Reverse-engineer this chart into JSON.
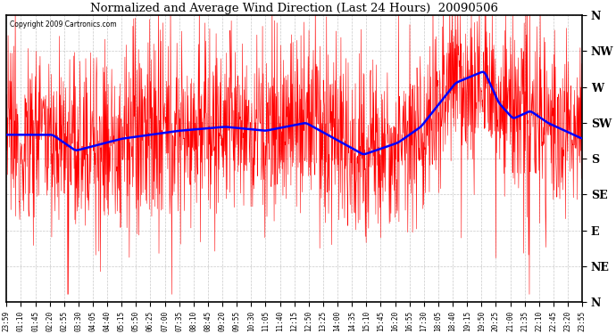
{
  "title": "Normalized and Average Wind Direction (Last 24 Hours)  20090506",
  "copyright_text": "Copyright 2009 Cartronics.com",
  "background_color": "#ffffff",
  "plot_bg_color": "#ffffff",
  "grid_color": "#bbbbbb",
  "red_line_color": "#ff0000",
  "blue_line_color": "#0000ff",
  "y_labels": [
    "N",
    "NW",
    "W",
    "SW",
    "S",
    "SE",
    "E",
    "NE",
    "N"
  ],
  "y_ticks": [
    360,
    315,
    270,
    225,
    180,
    135,
    90,
    45,
    0
  ],
  "ylim": [
    0,
    360
  ],
  "x_labels": [
    "23:59",
    "01:10",
    "01:45",
    "02:20",
    "02:55",
    "03:30",
    "04:05",
    "04:40",
    "05:15",
    "05:50",
    "06:25",
    "07:00",
    "07:35",
    "08:10",
    "08:45",
    "09:20",
    "09:55",
    "10:30",
    "11:05",
    "11:40",
    "12:15",
    "12:50",
    "13:25",
    "14:00",
    "14:35",
    "15:10",
    "15:45",
    "16:20",
    "16:55",
    "17:30",
    "18:05",
    "18:40",
    "19:15",
    "19:50",
    "20:25",
    "21:00",
    "21:35",
    "22:10",
    "22:45",
    "23:20",
    "23:55"
  ],
  "n_points": 1440,
  "seed": 12345,
  "figsize": [
    6.9,
    3.75
  ],
  "dpi": 100
}
